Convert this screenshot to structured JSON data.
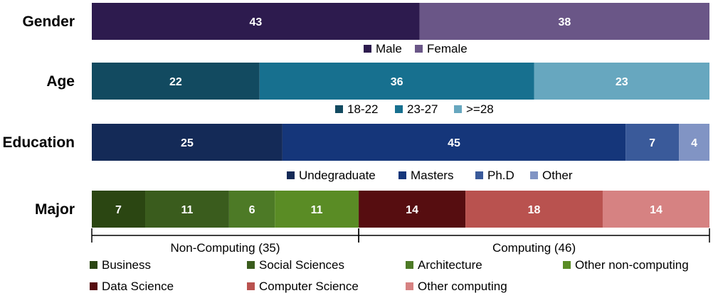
{
  "chart_data": {
    "type": "bar",
    "orientation": "horizontal",
    "stacked": true,
    "rows": [
      {
        "label": "Gender",
        "segments": [
          {
            "name": "Male",
            "value": 43,
            "color": "#2d1b4e"
          },
          {
            "name": "Female",
            "value": 38,
            "color": "#6a5687"
          }
        ]
      },
      {
        "label": "Age",
        "segments": [
          {
            "name": "18-22",
            "value": 22,
            "color": "#124a60"
          },
          {
            "name": "23-27",
            "value": 36,
            "color": "#17708f"
          },
          {
            "name": ">=28",
            "value": 23,
            "color": "#67a7bf"
          }
        ]
      },
      {
        "label": "Education",
        "segments": [
          {
            "name": "Undegraduate",
            "value": 25,
            "color": "#142a57"
          },
          {
            "name": "Masters",
            "value": 45,
            "color": "#15367a"
          },
          {
            "name": "Ph.D",
            "value": 7,
            "color": "#3a5a9a"
          },
          {
            "name": "Other",
            "value": 4,
            "color": "#8194c4"
          }
        ]
      },
      {
        "label": "Major",
        "segments": [
          {
            "name": "Business",
            "value": 7,
            "color": "#2b4612"
          },
          {
            "name": "Social Sciences",
            "value": 11,
            "color": "#3a5c1d"
          },
          {
            "name": "Architecture",
            "value": 6,
            "color": "#4d7a26"
          },
          {
            "name": "Other non-computing",
            "value": 11,
            "color": "#5a8c25"
          },
          {
            "name": "Data Science",
            "value": 14,
            "color": "#560d10"
          },
          {
            "name": "Computer Science",
            "value": 18,
            "color": "#b9524f"
          },
          {
            "name": "Other computing",
            "value": 14,
            "color": "#d68282"
          }
        ]
      }
    ],
    "total": 81,
    "groups": [
      {
        "label": "Non-Computing (35)",
        "from": 0,
        "to": 35
      },
      {
        "label": "Computing (46)",
        "from": 35,
        "to": 81
      }
    ]
  }
}
